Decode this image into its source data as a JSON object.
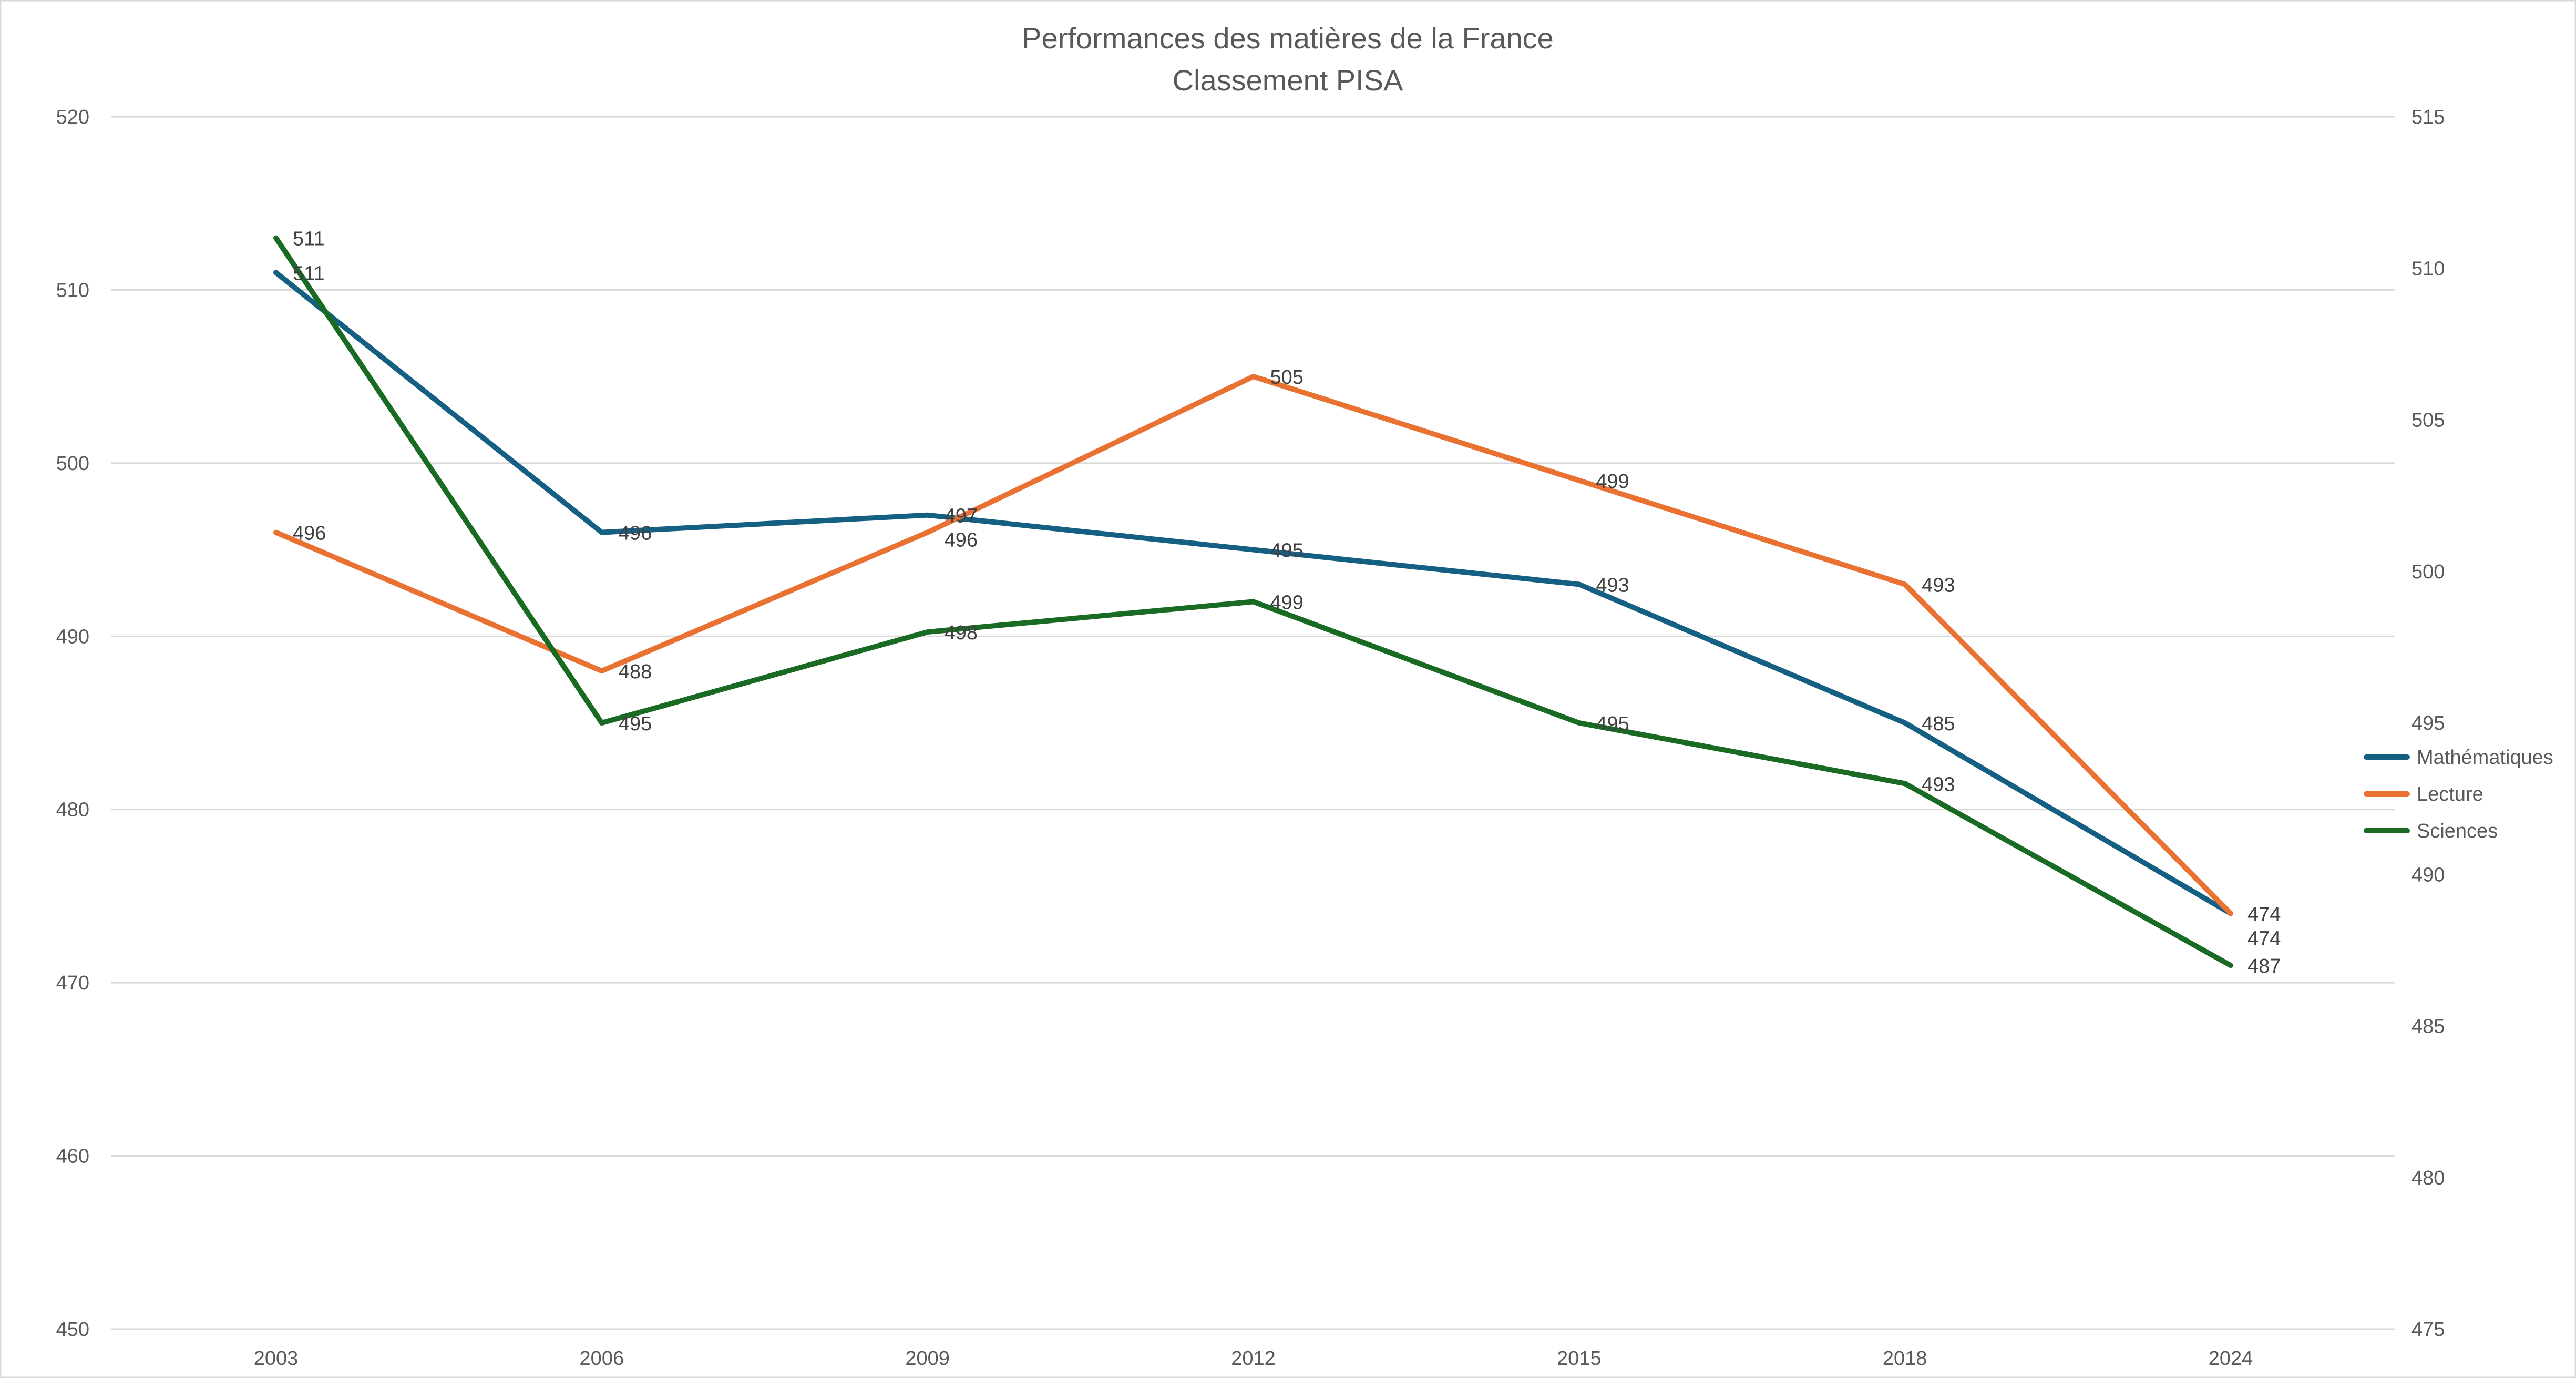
{
  "chart_data": {
    "type": "line",
    "title": "Performances des matières de la France",
    "subtitle": "Classement PISA",
    "categories": [
      "2003",
      "2006",
      "2009",
      "2012",
      "2015",
      "2018",
      "2024"
    ],
    "y_left": {
      "range": [
        450,
        520
      ],
      "ticks": [
        450,
        460,
        470,
        480,
        490,
        500,
        510,
        520
      ]
    },
    "y_right": {
      "range": [
        475,
        515
      ],
      "ticks": [
        475,
        480,
        485,
        490,
        495,
        500,
        505,
        510,
        515
      ]
    },
    "grid": true,
    "legend_position": "right",
    "series": [
      {
        "name": "Mathématiques",
        "axis": "left",
        "color": "#156082",
        "values": [
          511,
          496,
          497,
          495,
          493,
          485,
          474
        ]
      },
      {
        "name": "Lecture",
        "axis": "left",
        "color": "#E97132",
        "values": [
          496,
          488,
          496,
          505,
          499,
          493,
          474
        ]
      },
      {
        "name": "Sciences",
        "axis": "right",
        "color": "#196B24",
        "values": [
          511,
          495,
          498,
          499,
          495,
          493,
          487
        ]
      }
    ],
    "annotations": [
      {
        "text": "495",
        "near": "legend"
      }
    ]
  }
}
